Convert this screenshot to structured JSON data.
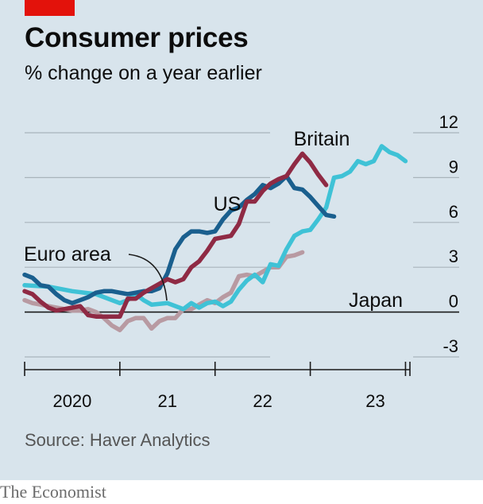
{
  "header": {
    "title": "Consumer prices",
    "subtitle": "% change on a year earlier"
  },
  "footer": {
    "source": "Source: Haver Analytics",
    "brand": "The Economist"
  },
  "colors": {
    "background": "#d8e4ec",
    "accent_red": "#e3120b",
    "britain": "#3fc2d6",
    "us": "#1a5f8e",
    "euro_area": "#8f2a44",
    "japan": "#b89aa2"
  },
  "chart_data": {
    "type": "line",
    "title": "Consumer prices",
    "subtitle": "% change on a year earlier",
    "ylabel": "% change on a year earlier",
    "ylim": [
      -3,
      12
    ],
    "yticks": [
      12,
      9,
      6,
      3,
      0,
      -3
    ],
    "y_tick_labels": [
      "12",
      "9",
      "6",
      "3",
      "0",
      "-3"
    ],
    "y_axis_side": "right",
    "grid": true,
    "x_tick_labels": [
      "2020",
      "21",
      "22",
      "23"
    ],
    "series": [
      {
        "name": "Britain",
        "color": "#3fc2d6",
        "points": [
          [
            2019.0,
            1.8
          ],
          [
            2019.25,
            1.7
          ],
          [
            2019.5,
            1.4
          ],
          [
            2019.75,
            1.2
          ],
          [
            2019.917,
            0.8
          ],
          [
            2020.0,
            0.6
          ],
          [
            2020.083,
            0.8
          ],
          [
            2020.167,
            1.2
          ],
          [
            2020.25,
            0.8
          ],
          [
            2020.333,
            0.5
          ],
          [
            2020.5,
            0.6
          ],
          [
            2020.667,
            0.2
          ],
          [
            2020.75,
            0.6
          ],
          [
            2020.833,
            0.3
          ],
          [
            2020.917,
            0.6
          ],
          [
            2021.0,
            0.7
          ],
          [
            2021.083,
            0.4
          ],
          [
            2021.167,
            0.7
          ],
          [
            2021.25,
            1.5
          ],
          [
            2021.333,
            2.1
          ],
          [
            2021.417,
            2.5
          ],
          [
            2021.5,
            2.0
          ],
          [
            2021.583,
            3.2
          ],
          [
            2021.667,
            3.1
          ],
          [
            2021.75,
            4.2
          ],
          [
            2021.833,
            5.1
          ],
          [
            2021.917,
            5.4
          ],
          [
            2022.0,
            5.5
          ],
          [
            2022.083,
            6.2
          ],
          [
            2022.167,
            7.0
          ],
          [
            2022.25,
            9.0
          ],
          [
            2022.333,
            9.1
          ],
          [
            2022.417,
            9.4
          ],
          [
            2022.5,
            10.1
          ],
          [
            2022.583,
            9.9
          ],
          [
            2022.667,
            10.1
          ],
          [
            2022.75,
            11.1
          ],
          [
            2022.833,
            10.7
          ],
          [
            2022.917,
            10.5
          ],
          [
            2023.0,
            10.1
          ]
        ]
      },
      {
        "name": "US",
        "color": "#1a5f8e",
        "points": [
          [
            2019.0,
            2.5
          ],
          [
            2019.083,
            2.3
          ],
          [
            2019.167,
            1.8
          ],
          [
            2019.25,
            1.7
          ],
          [
            2019.333,
            1.2
          ],
          [
            2019.417,
            0.8
          ],
          [
            2019.5,
            0.6
          ],
          [
            2019.583,
            0.8
          ],
          [
            2019.667,
            1.0
          ],
          [
            2019.75,
            1.3
          ],
          [
            2019.833,
            1.4
          ],
          [
            2019.917,
            1.4
          ],
          [
            2020.0,
            1.3
          ],
          [
            2020.083,
            1.2
          ],
          [
            2020.167,
            1.3
          ],
          [
            2020.25,
            1.4
          ],
          [
            2020.333,
            1.4
          ],
          [
            2020.417,
            1.6
          ],
          [
            2020.5,
            2.6
          ],
          [
            2020.583,
            4.2
          ],
          [
            2020.667,
            5.0
          ],
          [
            2020.75,
            5.4
          ],
          [
            2020.833,
            5.4
          ],
          [
            2020.917,
            5.3
          ],
          [
            2021.0,
            5.4
          ],
          [
            2021.083,
            6.2
          ],
          [
            2021.167,
            6.8
          ],
          [
            2021.25,
            7.0
          ],
          [
            2021.333,
            7.5
          ],
          [
            2021.417,
            7.9
          ],
          [
            2021.5,
            8.5
          ],
          [
            2021.583,
            8.3
          ],
          [
            2021.667,
            8.6
          ],
          [
            2021.75,
            9.1
          ],
          [
            2021.833,
            8.3
          ],
          [
            2021.917,
            8.2
          ],
          [
            2022.0,
            7.7
          ],
          [
            2022.083,
            7.1
          ],
          [
            2022.167,
            6.5
          ],
          [
            2022.25,
            6.4
          ]
        ]
      },
      {
        "name": "Euro area",
        "color": "#8f2a44",
        "points": [
          [
            2019.0,
            1.4
          ],
          [
            2019.083,
            1.2
          ],
          [
            2019.167,
            0.7
          ],
          [
            2019.25,
            0.3
          ],
          [
            2019.333,
            0.1
          ],
          [
            2019.417,
            0.2
          ],
          [
            2019.5,
            0.3
          ],
          [
            2019.583,
            0.4
          ],
          [
            2019.667,
            -0.2
          ],
          [
            2019.75,
            -0.3
          ],
          [
            2019.833,
            -0.3
          ],
          [
            2019.917,
            -0.3
          ],
          [
            2020.0,
            -0.3
          ],
          [
            2020.083,
            0.9
          ],
          [
            2020.167,
            0.9
          ],
          [
            2020.25,
            1.3
          ],
          [
            2020.333,
            1.6
          ],
          [
            2020.417,
            1.9
          ],
          [
            2020.5,
            2.2
          ],
          [
            2020.583,
            2.0
          ],
          [
            2020.667,
            2.2
          ],
          [
            2020.75,
            3.0
          ],
          [
            2020.833,
            3.4
          ],
          [
            2020.917,
            4.1
          ],
          [
            2021.0,
            4.9
          ],
          [
            2021.083,
            5.0
          ],
          [
            2021.167,
            5.1
          ],
          [
            2021.25,
            5.9
          ],
          [
            2021.333,
            7.4
          ],
          [
            2021.417,
            7.4
          ],
          [
            2021.5,
            8.1
          ],
          [
            2021.583,
            8.6
          ],
          [
            2021.667,
            8.9
          ],
          [
            2021.75,
            9.1
          ],
          [
            2021.833,
            9.9
          ],
          [
            2021.917,
            10.6
          ],
          [
            2022.0,
            10.0
          ],
          [
            2022.083,
            9.2
          ],
          [
            2022.167,
            8.5
          ]
        ]
      },
      {
        "name": "Japan",
        "color": "#b89aa2",
        "points": [
          [
            2019.0,
            0.8
          ],
          [
            2019.083,
            0.6
          ],
          [
            2019.167,
            0.5
          ],
          [
            2019.25,
            0.4
          ],
          [
            2019.333,
            0.3
          ],
          [
            2019.417,
            0.2
          ],
          [
            2019.5,
            0.1
          ],
          [
            2019.583,
            0.1
          ],
          [
            2019.667,
            0.2
          ],
          [
            2019.75,
            0.0
          ],
          [
            2019.833,
            -0.4
          ],
          [
            2019.917,
            -0.9
          ],
          [
            2020.0,
            -1.2
          ],
          [
            2020.083,
            -0.6
          ],
          [
            2020.167,
            -0.4
          ],
          [
            2020.25,
            -0.4
          ],
          [
            2020.333,
            -1.1
          ],
          [
            2020.417,
            -0.6
          ],
          [
            2020.5,
            -0.4
          ],
          [
            2020.583,
            -0.4
          ],
          [
            2020.667,
            0.2
          ],
          [
            2020.75,
            0.2
          ],
          [
            2020.833,
            0.5
          ],
          [
            2020.917,
            0.8
          ],
          [
            2021.0,
            0.6
          ],
          [
            2021.083,
            1.0
          ],
          [
            2021.167,
            1.3
          ],
          [
            2021.25,
            2.4
          ],
          [
            2021.333,
            2.5
          ],
          [
            2021.417,
            2.4
          ],
          [
            2021.5,
            2.7
          ],
          [
            2021.583,
            3.0
          ],
          [
            2021.667,
            3.0
          ],
          [
            2021.75,
            3.7
          ],
          [
            2021.833,
            3.8
          ],
          [
            2021.917,
            4.0
          ]
        ]
      }
    ],
    "annotations": [
      {
        "text": "Britain",
        "series": "Britain"
      },
      {
        "text": "US",
        "series": "US"
      },
      {
        "text": "Euro area",
        "series": "Euro area"
      },
      {
        "text": "Japan",
        "series": "Japan"
      }
    ]
  }
}
